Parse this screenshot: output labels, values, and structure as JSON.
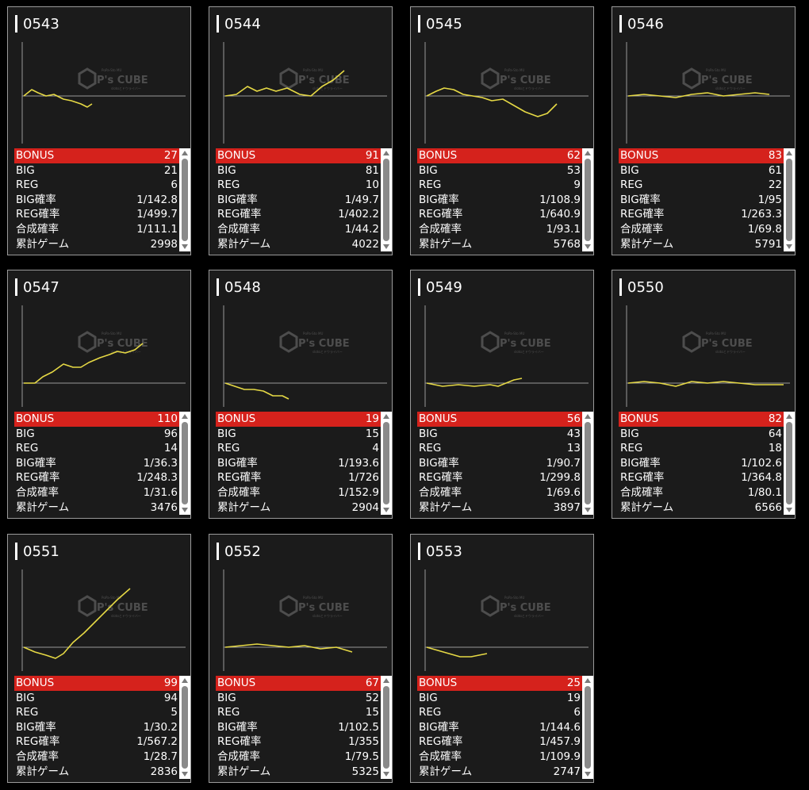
{
  "labels": {
    "bonus": "BONUS",
    "big": "BIG",
    "reg": "REG",
    "big_rate": "BIG確率",
    "reg_rate": "REG確率",
    "total_rate": "合成確率",
    "games": "累計ゲーム"
  },
  "watermark": {
    "brand": "P's CUBE",
    "top_line": "PαPa-Sto MU",
    "sub_line": "slotαとドウライバー"
  },
  "colors": {
    "accent": "#d5221c",
    "graph_line": "#e6d945",
    "baseline": "#9a9a9a"
  },
  "machines": [
    {
      "id": "0543",
      "bonus": "27",
      "big": "21",
      "reg": "6",
      "big_rate": "1/142.8",
      "reg_rate": "1/499.7",
      "total_rate": "1/111.1",
      "games": "2998"
    },
    {
      "id": "0544",
      "bonus": "91",
      "big": "81",
      "reg": "10",
      "big_rate": "1/49.7",
      "reg_rate": "1/402.2",
      "total_rate": "1/44.2",
      "games": "4022"
    },
    {
      "id": "0545",
      "bonus": "62",
      "big": "53",
      "reg": "9",
      "big_rate": "1/108.9",
      "reg_rate": "1/640.9",
      "total_rate": "1/93.1",
      "games": "5768"
    },
    {
      "id": "0546",
      "bonus": "83",
      "big": "61",
      "reg": "22",
      "big_rate": "1/95",
      "reg_rate": "1/263.3",
      "total_rate": "1/69.8",
      "games": "5791"
    },
    {
      "id": "0547",
      "bonus": "110",
      "big": "96",
      "reg": "14",
      "big_rate": "1/36.3",
      "reg_rate": "1/248.3",
      "total_rate": "1/31.6",
      "games": "3476"
    },
    {
      "id": "0548",
      "bonus": "19",
      "big": "15",
      "reg": "4",
      "big_rate": "1/193.6",
      "reg_rate": "1/726",
      "total_rate": "1/152.9",
      "games": "2904"
    },
    {
      "id": "0549",
      "bonus": "56",
      "big": "43",
      "reg": "13",
      "big_rate": "1/90.7",
      "reg_rate": "1/299.8",
      "total_rate": "1/69.6",
      "games": "3897"
    },
    {
      "id": "0550",
      "bonus": "82",
      "big": "64",
      "reg": "18",
      "big_rate": "1/102.6",
      "reg_rate": "1/364.8",
      "total_rate": "1/80.1",
      "games": "6566"
    },
    {
      "id": "0551",
      "bonus": "99",
      "big": "94",
      "reg": "5",
      "big_rate": "1/30.2",
      "reg_rate": "1/567.2",
      "total_rate": "1/28.7",
      "games": "2836"
    },
    {
      "id": "0552",
      "bonus": "67",
      "big": "52",
      "reg": "15",
      "big_rate": "1/102.5",
      "reg_rate": "1/355",
      "total_rate": "1/79.5",
      "games": "5325"
    },
    {
      "id": "0553",
      "bonus": "25",
      "big": "19",
      "reg": "6",
      "big_rate": "1/144.6",
      "reg_rate": "1/457.9",
      "total_rate": "1/109.9",
      "games": "2747"
    }
  ]
}
